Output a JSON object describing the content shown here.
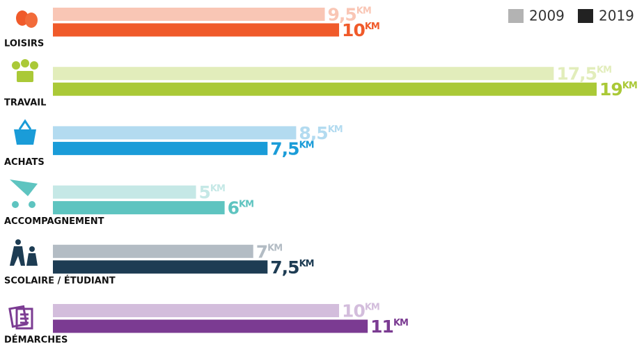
{
  "chart_data": {
    "type": "bar",
    "orientation": "horizontal",
    "categories": [
      "LOISIRS",
      "TRAVAIL",
      "ACHATS",
      "ACCOMPAGNEMENT",
      "SCOLAIRE / ÉTUDIANT",
      "DÉMARCHES"
    ],
    "unit": "KM",
    "series": [
      {
        "name": "2009",
        "color": "#b3b3b3",
        "colors": [
          "#f9c6b5",
          "#e2edbb",
          "#b3dbf0",
          "#c5e8e6",
          "#b3bcc4",
          "#d3bddc"
        ],
        "values": [
          9.5,
          17.5,
          8.5,
          5,
          7,
          10
        ],
        "value_labels": [
          "9,5",
          "17,5",
          "8,5",
          "5",
          "7",
          "10"
        ]
      },
      {
        "name": "2019",
        "color": "#222222",
        "colors": [
          "#f05a2a",
          "#aac937",
          "#1a9cd8",
          "#5ec4c0",
          "#1d3c53",
          "#7b3b92"
        ],
        "values": [
          10,
          19,
          7.5,
          6,
          7.5,
          11
        ],
        "value_labels": [
          "10",
          "19",
          "7,5",
          "6",
          "7,5",
          "11"
        ]
      }
    ],
    "xlim": [
      0,
      19
    ],
    "legend": "top-right"
  }
}
